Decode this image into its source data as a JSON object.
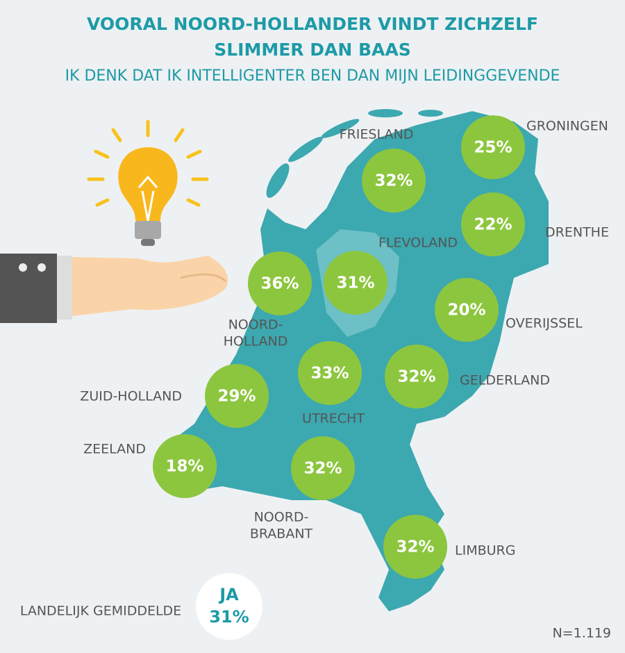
{
  "header": {
    "title": [
      "VOORAL NOORD-HOLLANDER VINDT ZICHZELF",
      "SLIMMER DAN BAAS"
    ],
    "subtitle": "IK DENK DAT IK INTELLIGENTER BEN DAN MIJN LEIDINGGEVENDE"
  },
  "provinces": [
    {
      "name": [
        "GRONINGEN"
      ],
      "value": "25%"
    },
    {
      "name": [
        "FRIESLAND"
      ],
      "value": "32%"
    },
    {
      "name": [
        "DRENTHE"
      ],
      "value": "22%"
    },
    {
      "name": [
        "NOORD-",
        "HOLLAND"
      ],
      "value": "36%"
    },
    {
      "name": [
        "FLEVOLAND"
      ],
      "value": "31%"
    },
    {
      "name": [
        "OVERIJSSEL"
      ],
      "value": "20%"
    },
    {
      "name": [
        "UTRECHT"
      ],
      "value": "33%"
    },
    {
      "name": [
        "GELDERLAND"
      ],
      "value": "32%"
    },
    {
      "name": [
        "ZUID-HOLLAND"
      ],
      "value": "29%"
    },
    {
      "name": [
        "ZEELAND"
      ],
      "value": "18%"
    },
    {
      "name": [
        "NOORD-",
        "BRABANT"
      ],
      "value": "32%"
    },
    {
      "name": [
        "LIMBURG"
      ],
      "value": "32%"
    }
  ],
  "national": {
    "label": "LANDELIJK GEMIDDELDE",
    "answer": "JA",
    "value": "31%"
  },
  "footer": {
    "sample": "N=1.119"
  }
}
